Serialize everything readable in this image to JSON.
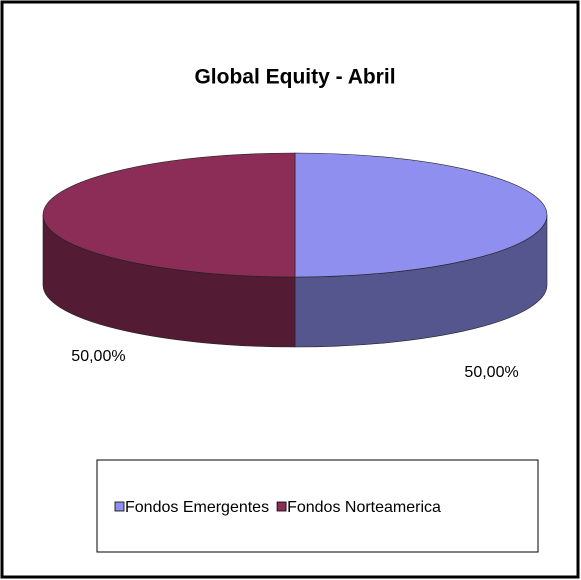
{
  "chart_data": {
    "type": "pie",
    "title": "Global Equity - Abril",
    "categories": [
      "Fondos Emergentes",
      "Fondos Norteamerica"
    ],
    "values": [
      50,
      50
    ],
    "value_labels": [
      "50,00%",
      "50,00%"
    ],
    "colors": [
      "#8f8fef",
      "#8b2d57"
    ],
    "legend": "bottom"
  }
}
